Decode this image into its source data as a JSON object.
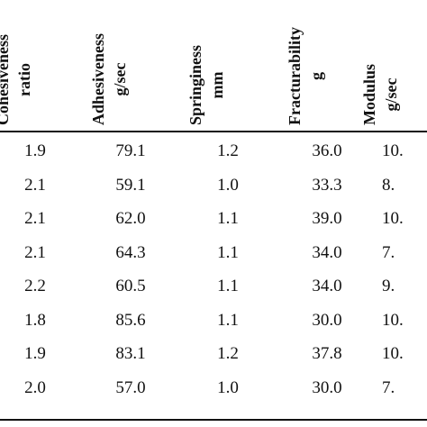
{
  "table": {
    "headers": [
      {
        "line1": "Cohesiveness",
        "line2": "ratio"
      },
      {
        "line1": "Adhesiveness",
        "line2": "g/sec"
      },
      {
        "line1": "Springiness",
        "line2": "mm"
      },
      {
        "line1": "Fracturability",
        "line2": "g"
      },
      {
        "line1": "Modulus",
        "line2": "g/sec"
      }
    ],
    "rows": [
      [
        "1.9",
        "79.1",
        "1.2",
        "36.0",
        "10."
      ],
      [
        "2.1",
        "59.1",
        "1.0",
        "33.3",
        "8."
      ],
      [
        "2.1",
        "62.0",
        "1.1",
        "39.0",
        "10."
      ],
      [
        "2.1",
        "64.3",
        "1.1",
        "34.0",
        "7."
      ],
      [
        "2.2",
        "60.5",
        "1.1",
        "34.0",
        "9."
      ],
      [
        "1.8",
        "85.6",
        "1.1",
        "30.0",
        "10."
      ],
      [
        "1.9",
        "83.1",
        "1.2",
        "37.8",
        "10."
      ],
      [
        "2.0",
        "57.0",
        "1.0",
        "30.0",
        "7."
      ]
    ]
  }
}
